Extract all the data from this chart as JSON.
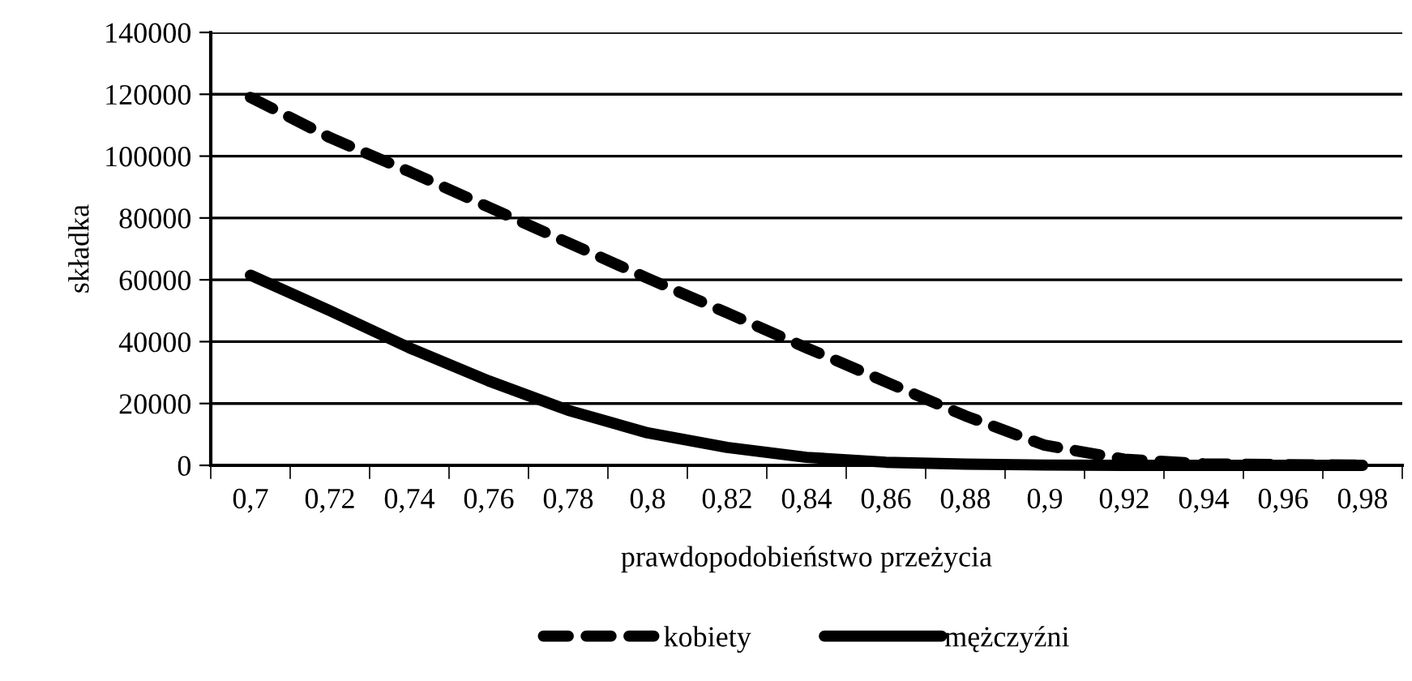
{
  "chart_data": {
    "type": "line",
    "xlabel": "prawdopodobieństwo przeżycia",
    "ylabel": "składka",
    "categories": [
      "0,7",
      "0,72",
      "0,74",
      "0,76",
      "0,78",
      "0,8",
      "0,82",
      "0,84",
      "0,86",
      "0,88",
      "0,9",
      "0,92",
      "0,94",
      "0,96",
      "0,98"
    ],
    "series": [
      {
        "name": "kobiety",
        "color": "#000000",
        "line_style": "dashed",
        "values": [
          119000,
          106000,
          95000,
          83500,
          72000,
          60500,
          49300,
          38000,
          27000,
          16000,
          6500,
          2000,
          500,
          200,
          100
        ]
      },
      {
        "name": "mężczyźni",
        "color": "#000000",
        "line_style": "solid",
        "values": [
          61500,
          50000,
          38000,
          27300,
          17800,
          10500,
          5800,
          2600,
          1000,
          400,
          100,
          0,
          0,
          0,
          0
        ]
      }
    ],
    "ylim": [
      0,
      140000
    ],
    "yticks": [
      0,
      20000,
      40000,
      60000,
      80000,
      100000,
      120000,
      140000
    ],
    "grid": "y",
    "legend": "bottom",
    "marker": "none"
  }
}
